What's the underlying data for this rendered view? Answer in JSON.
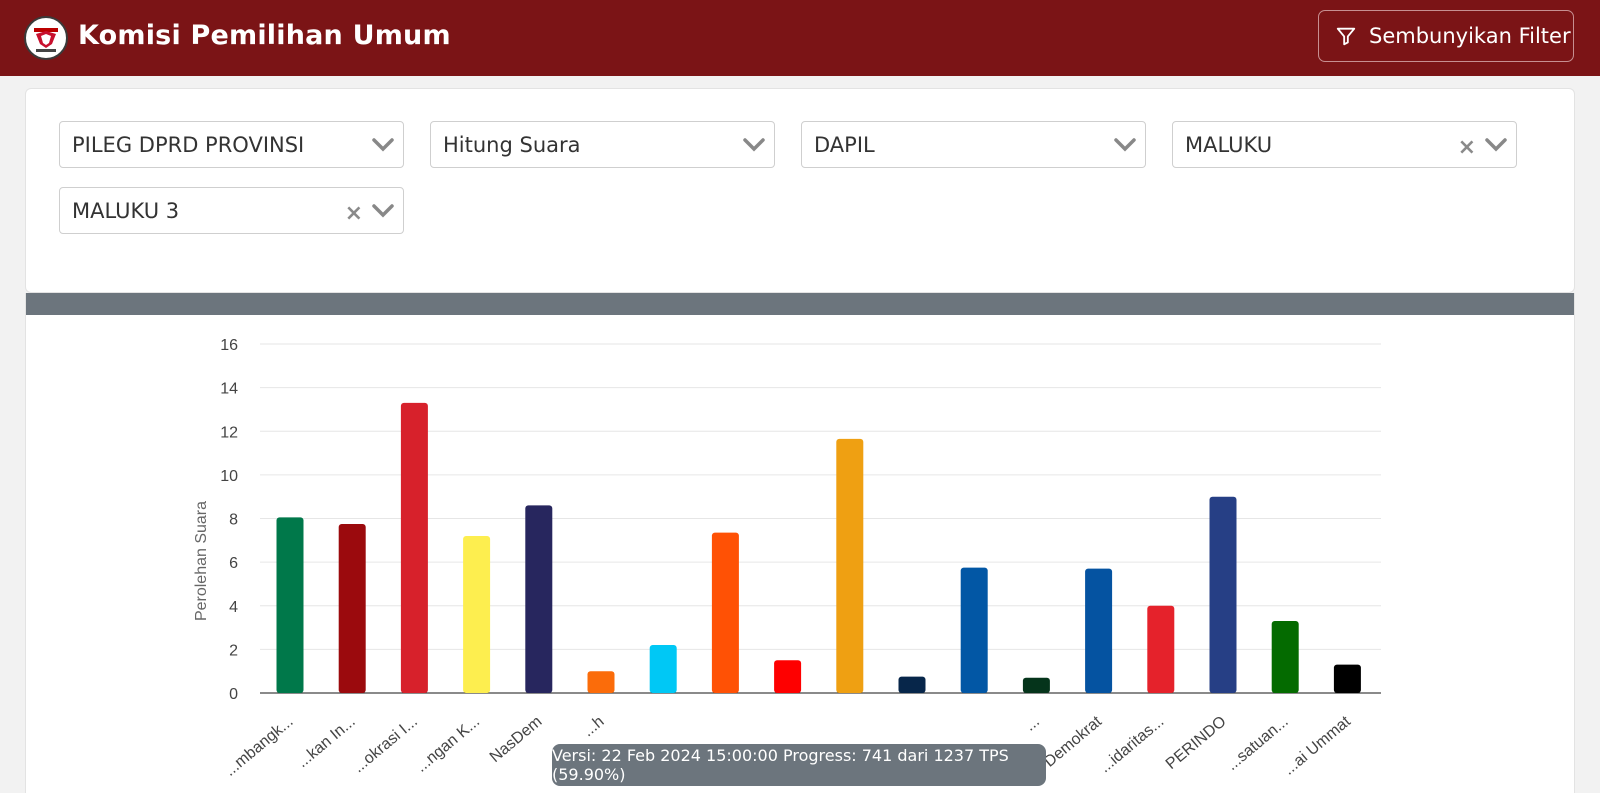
{
  "header": {
    "title": "Komisi Pemilihan Umum",
    "filter_button": "Sembunyikan Filter"
  },
  "filters": [
    {
      "value": "PILEG DPRD PROVINSI",
      "clearable": false
    },
    {
      "value": "Hitung Suara",
      "clearable": false
    },
    {
      "value": "DAPIL",
      "clearable": false
    },
    {
      "value": "MALUKU",
      "clearable": true
    },
    {
      "value": "MALUKU 3",
      "clearable": true
    }
  ],
  "status": "Versi: 22 Feb 2024 15:00:00 Progress: 741 dari 1237 TPS (59.90%)",
  "colors": {
    "navbar": "#7b1416",
    "chart_header": "#6c757d"
  },
  "chart_data": {
    "type": "bar",
    "ylabel": "Perolehan Suara",
    "ylim": [
      0,
      16
    ],
    "yticks": [
      0,
      2,
      4,
      6,
      8,
      10,
      12,
      14,
      16
    ],
    "grid": true,
    "categories": [
      "...mbangk...",
      "...kan In...",
      "...okrasi I...",
      "...ngan K...",
      "NasDem",
      "...h",
      "",
      "",
      "",
      "",
      "",
      "",
      "...",
      "Demokrat",
      "...idaritas...",
      "PERINDO",
      "...satuan...",
      "...ai Ummat"
    ],
    "values": [
      8.05,
      7.75,
      13.3,
      7.2,
      8.6,
      1.0,
      2.2,
      7.35,
      1.5,
      11.65,
      0.75,
      5.75,
      0.7,
      5.7,
      4.0,
      9.0,
      3.3,
      1.3
    ],
    "colors": [
      "#00784a",
      "#9b0a0d",
      "#d7212b",
      "#fdee4f",
      "#27265e",
      "#fb6c0a",
      "#00c8f5",
      "#ff5105",
      "#fe0000",
      "#efa012",
      "#07264a",
      "#0257a5",
      "#05341b",
      "#0553a1",
      "#e5222b",
      "#263f85",
      "#046b00",
      "#000000"
    ]
  }
}
